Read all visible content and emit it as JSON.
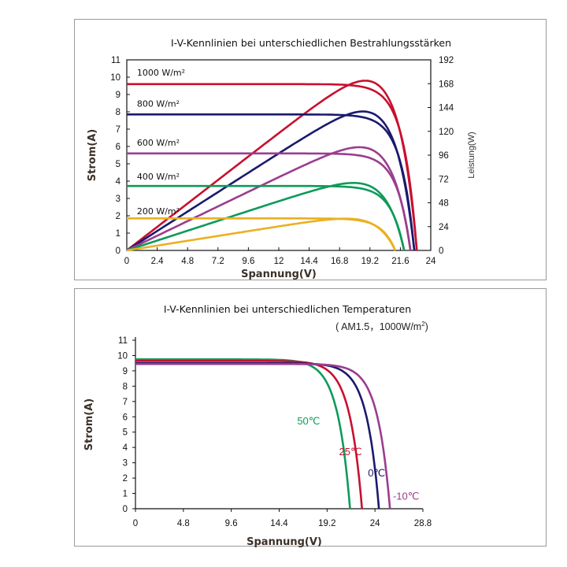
{
  "chart_data": [
    {
      "type": "line",
      "title": "I-V-Kennlinien bei unterschiedlichen Bestrahlungsstärken",
      "xlabel": "Spannung(V)",
      "ylabel": "Strom(A)",
      "y2label": "Leistung(W)",
      "xlim": [
        0,
        24
      ],
      "ylim": [
        0,
        11
      ],
      "y2lim": [
        0,
        192
      ],
      "xticks": [
        "0",
        "2.4",
        "4.8",
        "7.2",
        "9.6",
        "12",
        "14.4",
        "16.8",
        "19.2",
        "21.6",
        "24"
      ],
      "yticks": [
        "0",
        "1",
        "2",
        "3",
        "4",
        "5",
        "6",
        "7",
        "8",
        "9",
        "10",
        "11"
      ],
      "y2ticks": [
        "0",
        "24",
        "48",
        "72",
        "96",
        "120",
        "144",
        "168",
        "192"
      ],
      "grid": false,
      "series": [
        {
          "name": "1000 W/m²",
          "color": "#c8102e",
          "isc": 9.6,
          "voc": 22.9,
          "pmax": 171,
          "vmp": 18.6
        },
        {
          "name": "800 W/m²",
          "color": "#1a1a6e",
          "isc": 7.85,
          "voc": 22.7,
          "pmax": 140,
          "vmp": 18.5
        },
        {
          "name": "600 W/m²",
          "color": "#9a3d8f",
          "isc": 5.6,
          "voc": 22.4,
          "pmax": 104,
          "vmp": 18.5
        },
        {
          "name": "400 W/m²",
          "color": "#0e9a5a",
          "isc": 3.72,
          "voc": 21.9,
          "pmax": 68,
          "vmp": 18.5
        },
        {
          "name": "200 W/m²",
          "color": "#eab020",
          "isc": 1.85,
          "voc": 21.2,
          "pmax": 32,
          "vmp": 18.4
        }
      ]
    },
    {
      "type": "line",
      "title": "I-V-Kennlinien bei unterschiedlichen Temperaturen",
      "subtitle_pre": "( AM1.5，1000W/m",
      "subtitle_sup": "2",
      "subtitle_post": ")",
      "xlabel": "Spannung(V)",
      "ylabel": "Strom(A)",
      "xlim": [
        0,
        28.8
      ],
      "ylim": [
        0,
        11
      ],
      "xticks": [
        "0",
        "4.8",
        "9.6",
        "14.4",
        "19.2",
        "24",
        "28.8"
      ],
      "yticks": [
        "0",
        "1",
        "2",
        "3",
        "4",
        "5",
        "6",
        "7",
        "8",
        "9",
        "10",
        "11"
      ],
      "grid": false,
      "series": [
        {
          "name": "50℃",
          "color": "#0e9a5a",
          "isc": 9.75,
          "voc": 21.5
        },
        {
          "name": "25℃",
          "color": "#c8102e",
          "isc": 9.65,
          "voc": 22.7
        },
        {
          "name": "0℃",
          "color": "#1a1a6e",
          "isc": 9.5,
          "voc": 24.4
        },
        {
          "name": "-10℃",
          "color": "#9a3d8f",
          "isc": 9.45,
          "voc": 25.5
        }
      ]
    }
  ]
}
